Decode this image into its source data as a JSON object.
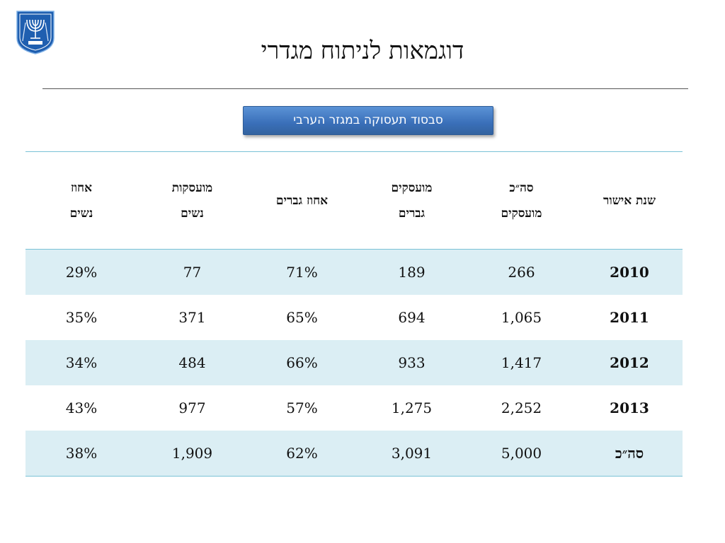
{
  "title": "דוגמאות לניתוח מגדרי",
  "subtitle": "סבסוד תעסוקה במגזר הערבי",
  "colors": {
    "emblem_blue": "#1f5fb0",
    "button_blue": "#3a6fb9",
    "row_shade": "#dbeef4",
    "rule_teal": "#7ac2d6"
  },
  "table": {
    "headers": {
      "year": "שנת אישור",
      "total_line1": "סה״כ",
      "total_line2": "מועסקים",
      "men_line1": "מועסקים",
      "men_line2": "גברים",
      "men_pct": "אחוז גברים",
      "women_line1": "מועסקות",
      "women_line2": "נשים",
      "women_pct_line1": "אחוז",
      "women_pct_line2": "נשים"
    },
    "rows": [
      {
        "year": "2010",
        "total": "266",
        "men": "189",
        "men_pct": "71%",
        "women": "77",
        "women_pct": "29%"
      },
      {
        "year": "2011",
        "total": "1,065",
        "men": "694",
        "men_pct": "65%",
        "women": "371",
        "women_pct": "35%"
      },
      {
        "year": "2012",
        "total": "1,417",
        "men": "933",
        "men_pct": "66%",
        "women": "484",
        "women_pct": "34%"
      },
      {
        "year": "2013",
        "total": "2,252",
        "men": "1,275",
        "men_pct": "57%",
        "women": "977",
        "women_pct": "43%"
      },
      {
        "year": "סה״כ",
        "total": "5,000",
        "men": "3,091",
        "men_pct": "62%",
        "women": "1,909",
        "women_pct": "38%"
      }
    ]
  }
}
